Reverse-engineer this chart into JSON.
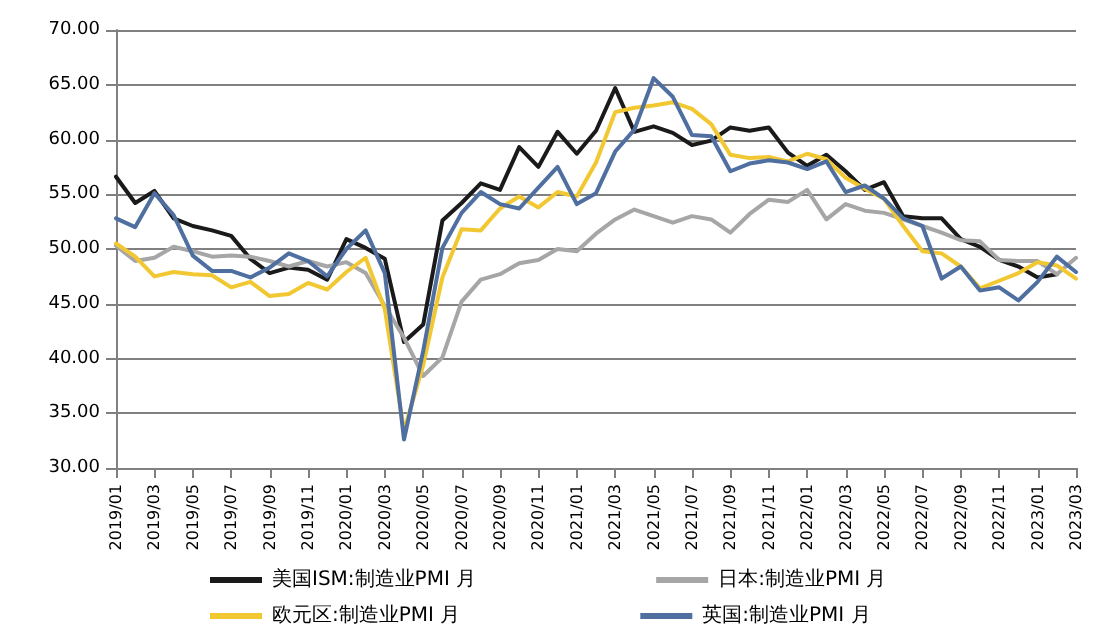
{
  "chart_data": {
    "type": "line",
    "categories": [
      "2019/01",
      null,
      "2019/03",
      null,
      "2019/05",
      null,
      "2019/07",
      null,
      "2019/09",
      null,
      "2019/11",
      null,
      "2020/01",
      null,
      "2020/03",
      null,
      "2020/05",
      null,
      "2020/07",
      null,
      "2020/09",
      null,
      "2020/11",
      null,
      "2021/01",
      null,
      "2021/03",
      null,
      "2021/05",
      null,
      "2021/07",
      null,
      "2021/09",
      null,
      "2021/11",
      null,
      "2022/01",
      null,
      "2022/03",
      null,
      "2022/05",
      null,
      "2022/07",
      null,
      "2022/09",
      null,
      "2022/11",
      null,
      "2023/01",
      null,
      "2023/03"
    ],
    "series": [
      {
        "name": "美国ISM:制造业PMI 月",
        "color": "#1a1a1a",
        "values": [
          56.6,
          54.2,
          55.3,
          52.8,
          52.1,
          51.7,
          51.2,
          49.1,
          47.8,
          48.3,
          48.1,
          47.2,
          50.9,
          50.1,
          49.1,
          41.5,
          43.1,
          52.6,
          54.2,
          56.0,
          55.4,
          59.3,
          57.5,
          60.7,
          58.7,
          60.8,
          64.7,
          60.7,
          61.2,
          60.6,
          59.5,
          59.9,
          61.1,
          60.8,
          61.1,
          58.8,
          57.6,
          58.6,
          57.1,
          55.4,
          56.1,
          53.0,
          52.8,
          52.8,
          50.9,
          50.2,
          49.0,
          48.4,
          47.4,
          47.7,
          null
        ]
      },
      {
        "name": "日本:制造业PMI 月",
        "color": "#a6a6a6",
        "values": [
          50.3,
          48.9,
          49.2,
          50.2,
          49.8,
          49.3,
          49.4,
          49.3,
          48.9,
          48.4,
          48.9,
          48.4,
          48.8,
          47.8,
          44.8,
          41.9,
          38.4,
          40.1,
          45.2,
          47.2,
          47.7,
          48.7,
          49.0,
          50.0,
          49.8,
          51.4,
          52.7,
          53.6,
          53.0,
          52.4,
          53.0,
          52.7,
          51.5,
          53.2,
          54.5,
          54.3,
          55.4,
          52.7,
          54.1,
          53.5,
          53.3,
          52.7,
          52.1,
          51.5,
          50.8,
          50.7,
          49.0,
          48.9,
          48.9,
          47.7,
          49.2
        ]
      },
      {
        "name": "欧元区:制造业PMI 月",
        "color": "#f2c832",
        "values": [
          50.5,
          49.3,
          47.5,
          47.9,
          47.7,
          47.6,
          46.5,
          47.0,
          45.7,
          45.9,
          46.9,
          46.3,
          47.9,
          49.2,
          44.5,
          33.4,
          39.4,
          47.4,
          51.8,
          51.7,
          53.7,
          54.8,
          53.8,
          55.2,
          54.8,
          57.9,
          62.5,
          62.9,
          63.1,
          63.4,
          62.8,
          61.4,
          58.6,
          58.3,
          58.4,
          58.0,
          58.7,
          58.2,
          56.5,
          55.5,
          54.6,
          52.1,
          49.8,
          49.6,
          48.4,
          46.4,
          47.1,
          47.8,
          48.8,
          48.5,
          47.3
        ]
      },
      {
        "name": "英国:制造业PMI 月",
        "color": "#4f6fa0",
        "values": [
          52.8,
          52.0,
          55.1,
          53.1,
          49.4,
          48.0,
          48.0,
          47.4,
          48.3,
          49.6,
          48.9,
          47.5,
          50.0,
          51.7,
          47.8,
          32.6,
          40.7,
          50.1,
          53.3,
          55.2,
          54.1,
          53.7,
          55.6,
          57.5,
          54.1,
          55.1,
          58.9,
          60.9,
          65.6,
          63.9,
          60.4,
          60.3,
          57.1,
          57.8,
          58.1,
          57.9,
          57.3,
          58.0,
          55.2,
          55.8,
          54.6,
          52.8,
          52.1,
          47.3,
          48.4,
          46.2,
          46.5,
          45.3,
          47.0,
          49.3,
          47.9
        ]
      }
    ],
    "ylim": [
      30,
      70
    ],
    "yticks": [
      {
        "value": 30,
        "label": "30.00"
      },
      {
        "value": 35,
        "label": "35.00"
      },
      {
        "value": 40,
        "label": "40.00"
      },
      {
        "value": 45,
        "label": "45.00"
      },
      {
        "value": 50,
        "label": "50.00"
      },
      {
        "value": 55,
        "label": "55.00"
      },
      {
        "value": 60,
        "label": "60.00"
      },
      {
        "value": 65,
        "label": "65.00"
      },
      {
        "value": 70,
        "label": "70.00"
      }
    ],
    "grid": "y",
    "legend": "bottom",
    "marker": "none",
    "line_style": "solid"
  }
}
